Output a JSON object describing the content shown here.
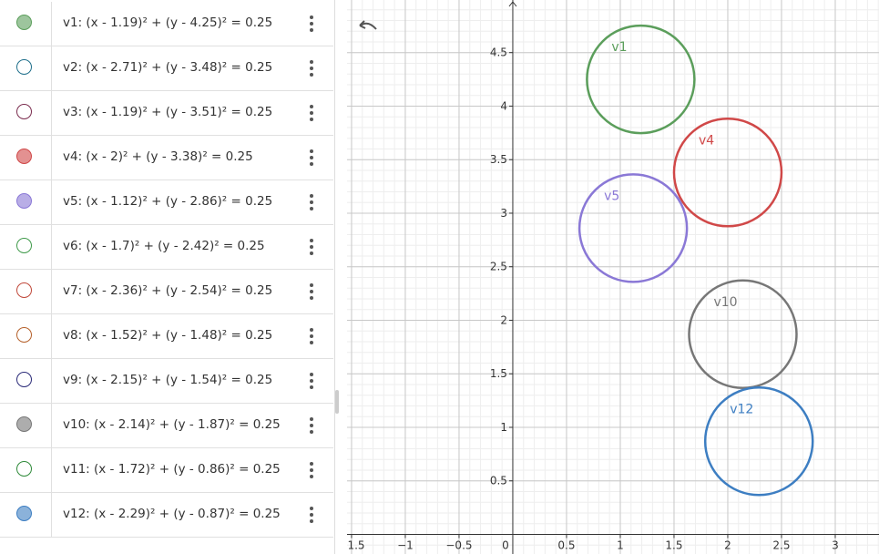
{
  "algebra": {
    "items": [
      {
        "definition": "v1: (x - 1.19)² + (y - 4.25)² = 0.25",
        "name": "v1",
        "visible": true,
        "color": "#5b9e5b",
        "cx": 1.19,
        "cy": 4.25,
        "r2": 0.25
      },
      {
        "definition": "v2: (x - 2.71)² + (y - 3.48)² = 0.25",
        "visible": false,
        "color": "#1f6f8b",
        "cx": 2.71,
        "cy": 3.48,
        "r2": 0.25
      },
      {
        "definition": "v3: (x - 1.19)² + (y - 3.51)² = 0.25",
        "visible": false,
        "color": "#7b2d4f",
        "cx": 1.19,
        "cy": 3.51,
        "r2": 0.25
      },
      {
        "definition": "v4: (x - 2)² + (y - 3.38)² = 0.25",
        "name": "v4",
        "visible": true,
        "color": "#d04848",
        "cx": 2,
        "cy": 3.38,
        "r2": 0.25
      },
      {
        "definition": "v5: (x - 1.12)² + (y - 2.86)² = 0.25",
        "name": "v5",
        "visible": true,
        "color": "#8a78d6",
        "cx": 1.12,
        "cy": 2.86,
        "r2": 0.25
      },
      {
        "definition": "v6: (x - 1.7)² + (y - 2.42)² = 0.25",
        "visible": false,
        "color": "#3f9a4a",
        "cx": 1.7,
        "cy": 2.42,
        "r2": 0.25
      },
      {
        "definition": "v7: (x - 2.36)² + (y - 2.54)² = 0.25",
        "visible": false,
        "color": "#c0483a",
        "cx": 2.36,
        "cy": 2.54,
        "r2": 0.25
      },
      {
        "definition": "v8: (x - 1.52)² + (y - 1.48)² = 0.25",
        "visible": false,
        "color": "#b5602a",
        "cx": 1.52,
        "cy": 1.48,
        "r2": 0.25
      },
      {
        "definition": "v9: (x - 2.15)² + (y - 1.54)² = 0.25",
        "visible": false,
        "color": "#2a2a78",
        "cx": 2.15,
        "cy": 1.54,
        "r2": 0.25
      },
      {
        "definition": "v10: (x - 2.14)² + (y - 1.87)² = 0.25",
        "name": "v10",
        "visible": true,
        "color": "#777777",
        "cx": 2.14,
        "cy": 1.87,
        "r2": 0.25
      },
      {
        "definition": "v11: (x - 1.72)² + (y - 0.86)² = 0.25",
        "visible": false,
        "color": "#2f8a3a",
        "cx": 1.72,
        "cy": 0.86,
        "r2": 0.25
      },
      {
        "definition": "v12: (x - 2.29)² + (y - 0.87)² = 0.25",
        "name": "v12",
        "visible": true,
        "color": "#3d7ec2",
        "cx": 2.29,
        "cy": 0.87,
        "r2": 0.25
      }
    ]
  },
  "graphics": {
    "xlim": [
      -1.542,
      3.407
    ],
    "ylim": [
      -0.183,
      4.991
    ],
    "xticks": [
      {
        "value": -1.5,
        "label": "−1.5"
      },
      {
        "value": -1,
        "label": "−1"
      },
      {
        "value": -0.5,
        "label": "−0.5"
      },
      0,
      0.5,
      1,
      1.5,
      2,
      2.5,
      3
    ],
    "yticks": [
      0.5,
      1,
      1.5,
      2,
      2.5,
      3,
      3.5,
      4,
      4.5
    ],
    "grid": true
  }
}
